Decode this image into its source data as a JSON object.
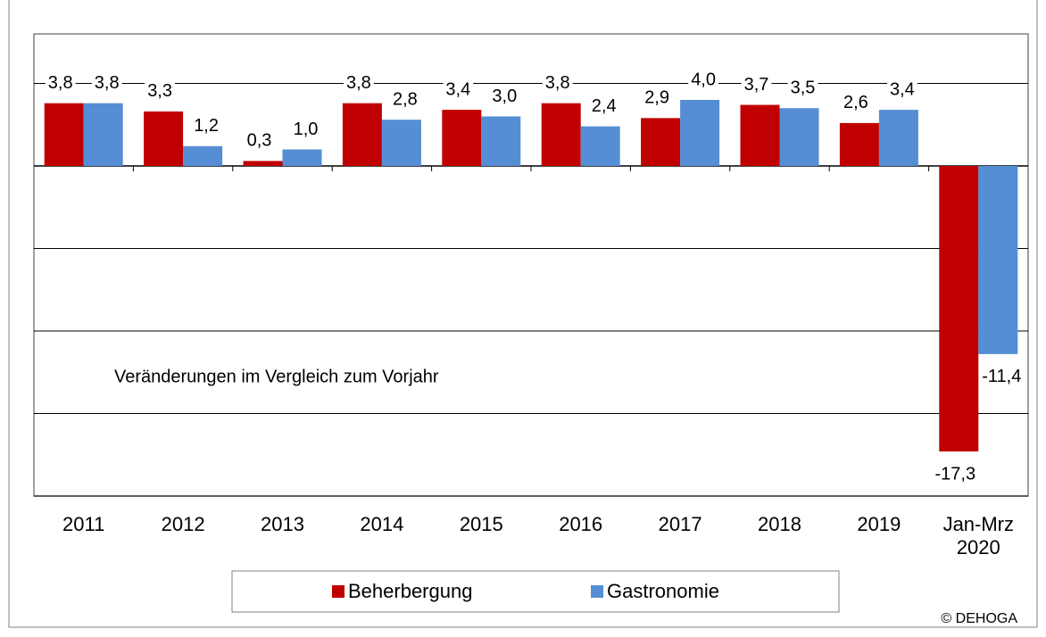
{
  "chart_data": {
    "type": "bar",
    "categories": [
      "2011",
      "2012",
      "2013",
      "2014",
      "2015",
      "2016",
      "2017",
      "2018",
      "2019",
      "Jan-Mrz 2020"
    ],
    "series": [
      {
        "name": "Beherbergung",
        "color": "#c00000",
        "values": [
          3.8,
          3.3,
          0.3,
          3.8,
          3.4,
          3.8,
          2.9,
          3.7,
          2.6,
          -17.3
        ],
        "value_labels": [
          "3,8",
          "3,3",
          "0,3",
          "3,8",
          "3,4",
          "3,8",
          "2,9",
          "3,7",
          "2,6",
          "-17,3"
        ]
      },
      {
        "name": "Gastronomie",
        "color": "#558ed5",
        "values": [
          3.8,
          1.2,
          1.0,
          2.8,
          3.0,
          2.4,
          4.0,
          3.5,
          3.4,
          -11.4
        ],
        "value_labels": [
          "3,8",
          "1,2",
          "1,0",
          "2,8",
          "3,0",
          "2,4",
          "4,0",
          "3,5",
          "3,4",
          "-11,4"
        ]
      }
    ],
    "ylim": [
      -20,
      8
    ],
    "yticks": [
      -20,
      -15,
      -10,
      -5,
      0,
      5
    ],
    "grid": true,
    "annotation": "Veränderungen im Vergleich zum Vorjahr",
    "source": "© DEHOGA",
    "legend": "bottom"
  }
}
